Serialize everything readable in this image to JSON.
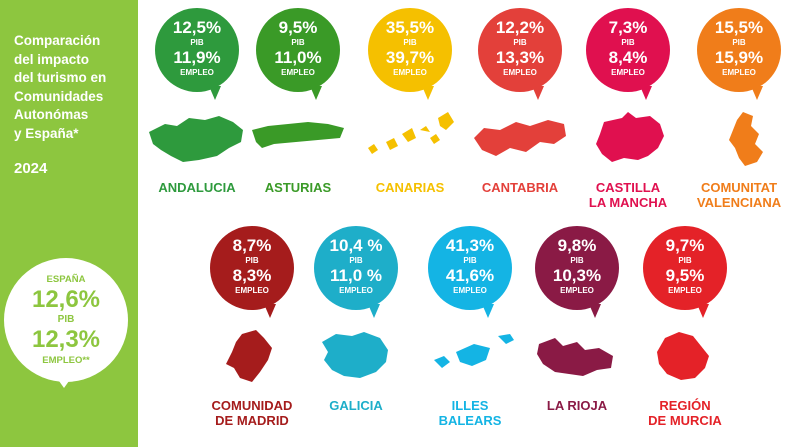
{
  "sidebar": {
    "title": "Comparación\ndel impacto\ndel turismo en\nComunidades\nAutonómas\ny España*",
    "year": "2024",
    "spain": {
      "name": "ESPAÑA",
      "pib": "12,6%",
      "pib_label": "PIB",
      "empleo": "12,3%",
      "empleo_label": "EMPLEO**"
    },
    "color": "#8dc63f"
  },
  "regions": [
    {
      "name": "ANDALUCIA",
      "pib": "12,5%",
      "empleo": "11,9%",
      "pib_label": "PIB",
      "empleo_label": "EMPLEO",
      "color": "#2e9a3d",
      "map_icon": "andalucia-map-icon"
    },
    {
      "name": "ASTURIAS",
      "pib": "9,5%",
      "empleo": "11,0%",
      "pib_label": "PIB",
      "empleo_label": "EMPLEO",
      "color": "#3a9a27",
      "map_icon": "asturias-map-icon"
    },
    {
      "name": "CANARIAS",
      "pib": "35,5%",
      "empleo": "39,7%",
      "pib_label": "PIB",
      "empleo_label": "EMPLEO",
      "color": "#f5c000",
      "map_icon": "canarias-map-icon"
    },
    {
      "name": "CANTABRIA",
      "pib": "12,2%",
      "empleo": "13,3%",
      "pib_label": "PIB",
      "empleo_label": "EMPLEO",
      "color": "#e3403a",
      "map_icon": "cantabria-map-icon"
    },
    {
      "name": "CASTILLA\nLA MANCHA",
      "pib": "7,3%",
      "empleo": "8,4%",
      "pib_label": "PIB",
      "empleo_label": "EMPLEO",
      "color": "#e0104f",
      "map_icon": "castilla-la-mancha-map-icon"
    },
    {
      "name": "COMUNITAT\nVALENCIANA",
      "pib": "15,5%",
      "empleo": "15,9%",
      "pib_label": "PIB",
      "empleo_label": "EMPLEO",
      "color": "#f07d1a",
      "map_icon": "comunitat-valenciana-map-icon"
    },
    {
      "name": "COMUNIDAD\nDE MADRID",
      "pib": "8,7%",
      "empleo": "8,3%",
      "pib_label": "PIB",
      "empleo_label": "EMPLEO",
      "color": "#a51c1c",
      "map_icon": "madrid-map-icon"
    },
    {
      "name": "GALICIA",
      "pib": "10,4 %",
      "empleo": "11,0 %",
      "pib_label": "PIB",
      "empleo_label": "EMPLEO",
      "color": "#1eaec9",
      "map_icon": "galicia-map-icon"
    },
    {
      "name": "ILLES\nBALEARS",
      "pib": "41,3%",
      "empleo": "41,6%",
      "pib_label": "PIB",
      "empleo_label": "EMPLEO",
      "color": "#14b4e4",
      "map_icon": "illes-balears-map-icon"
    },
    {
      "name": "LA RIOJA",
      "pib": "9,8%",
      "empleo": "10,3%",
      "pib_label": "PIB",
      "empleo_label": "EMPLEO",
      "color": "#8a1a45",
      "map_icon": "la-rioja-map-icon"
    },
    {
      "name": "REGIÓN\nDE MURCIA",
      "pib": "9,7%",
      "empleo": "9,5%",
      "pib_label": "PIB",
      "empleo_label": "EMPLEO",
      "color": "#e42228",
      "map_icon": "murcia-map-icon"
    }
  ]
}
